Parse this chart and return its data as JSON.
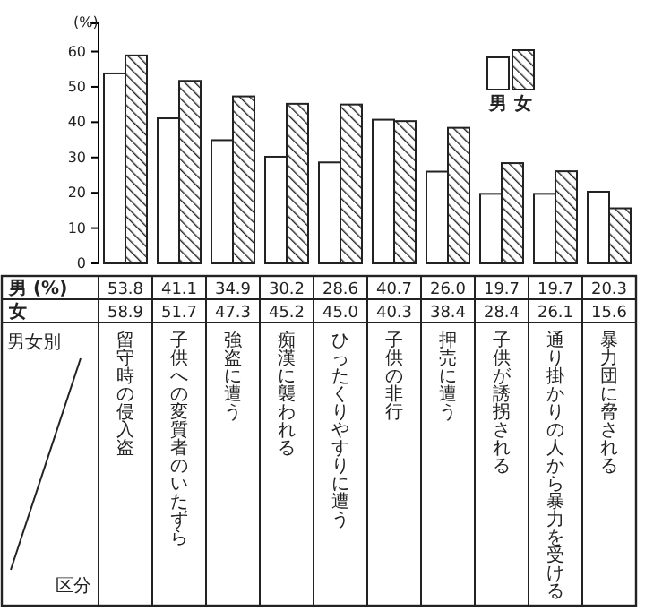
{
  "chart_data": {
    "type": "bar",
    "ylabel": "(%)",
    "categories": [
      "留守時の侵入盗",
      "子供への変質者のいたずら",
      "強盗に遭う",
      "痴漢に襲われる",
      "ひったくりやすりに遭う",
      "子供の非行",
      "押売に遭う",
      "子供が誘拐される",
      "通り掛かりの人から暴力を受ける",
      "暴力団に脅される"
    ],
    "series": [
      {
        "name": "男",
        "color": "#ffffff",
        "values": [
          53.8,
          41.1,
          34.9,
          30.2,
          28.6,
          40.7,
          26.0,
          19.7,
          19.7,
          20.3
        ],
        "value_labels": [
          "53.8",
          "41.1",
          "34.9",
          "30.2",
          "28.6",
          "40.7",
          "26.0",
          "19.7",
          "19.7",
          "20.3"
        ]
      },
      {
        "name": "女",
        "color": "#222222",
        "values": [
          58.9,
          51.7,
          47.3,
          45.2,
          45.0,
          40.3,
          38.4,
          28.4,
          26.1,
          15.6
        ],
        "value_labels": [
          "58.9",
          "51.7",
          "47.3",
          "45.2",
          "45.0",
          "40.3",
          "38.4",
          "28.4",
          "26.1",
          "15.6"
        ]
      }
    ],
    "ylim": [
      0,
      68
    ],
    "yticks": [
      0,
      10,
      20,
      30,
      40,
      50,
      60
    ],
    "grid": false,
    "legend": "top right",
    "data_labels": true,
    "annotations": [
      "男女別",
      "区分"
    ]
  }
}
